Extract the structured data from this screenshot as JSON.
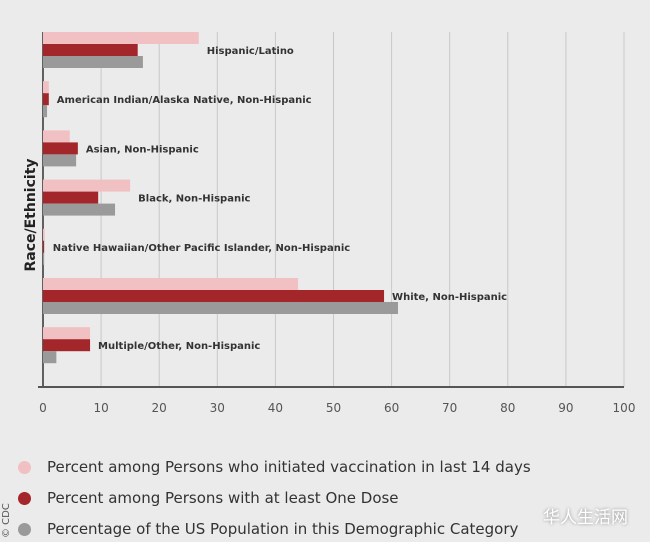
{
  "chart_data": {
    "type": "bar",
    "orientation": "horizontal",
    "ylabel": "Race/Ethnicity",
    "xlabel": "",
    "xlim": [
      0,
      100
    ],
    "xticks": [
      0,
      10,
      20,
      30,
      40,
      50,
      60,
      70,
      80,
      90,
      100
    ],
    "grid": true,
    "legend_position": "bottom",
    "categories": [
      "Hispanic/Latino",
      "American Indian/Alaska Native, Non-Hispanic",
      "Asian, Non-Hispanic",
      "Black, Non-Hispanic",
      "Native Hawaiian/Other Pacific Islander, Non-Hispanic",
      "White, Non-Hispanic",
      "Multiple/Other, Non-Hispanic"
    ],
    "series": [
      {
        "name": "Percent among Persons who initiated vaccination in last 14 days",
        "color": "#f0c0c2",
        "values": [
          26.8,
          1.0,
          4.6,
          15.0,
          0.3,
          43.9,
          8.1
        ]
      },
      {
        "name": "Percent among Persons with at least One Dose",
        "color": "#a3262b",
        "values": [
          16.3,
          1.0,
          6.0,
          9.5,
          0.2,
          58.7,
          8.1
        ]
      },
      {
        "name": "Percentage of the US Population in this Demographic Category",
        "color": "#9a9a9a",
        "values": [
          17.2,
          0.7,
          5.7,
          12.4,
          0.2,
          61.1,
          2.3
        ]
      }
    ]
  },
  "watermark": "华人生活网",
  "credit": "© CDC"
}
